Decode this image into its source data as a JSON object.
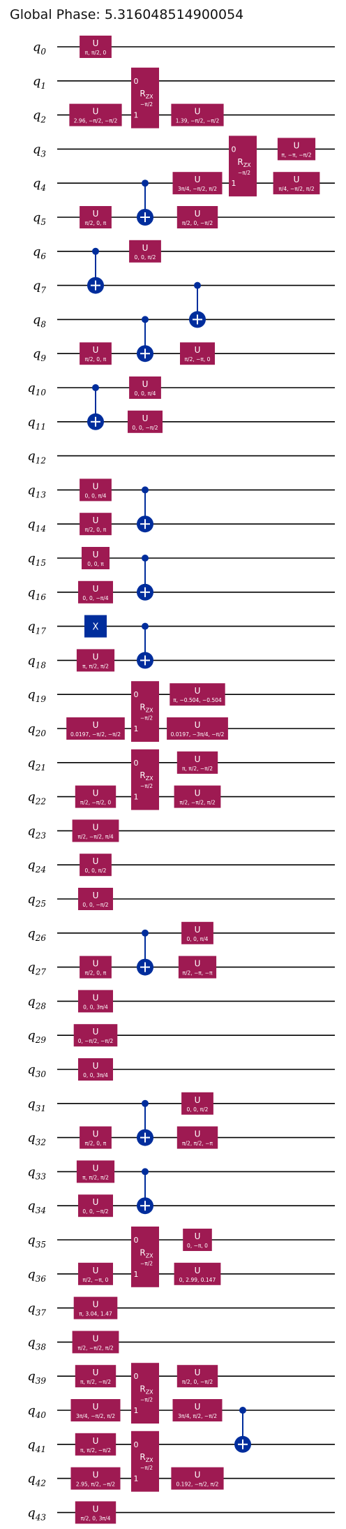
{
  "title": "Global Phase: 5.316048514900054",
  "qubit_prefix": "q",
  "qubits": [
    "0",
    "1",
    "2",
    "3",
    "4",
    "5",
    "6",
    "7",
    "8",
    "9",
    "10",
    "11",
    "12",
    "13",
    "14",
    "15",
    "16",
    "17",
    "18",
    "19",
    "20",
    "21",
    "22",
    "23",
    "24",
    "25",
    "26",
    "27",
    "28",
    "29",
    "30",
    "31",
    "32",
    "33",
    "34",
    "35",
    "36",
    "37",
    "38",
    "39",
    "40",
    "41",
    "42",
    "43"
  ],
  "colors": {
    "u_gate": "#9e1a52",
    "rzx_gate": "#9e1a52",
    "cx": "#002d9c",
    "x_gate": "#002d9c",
    "wire": "#000000",
    "text": "#ffffff"
  },
  "gates": [
    {
      "type": "U",
      "q": 0,
      "col": 1,
      "params": "π, π/2, 0"
    },
    {
      "type": "U",
      "q": 2,
      "col": 1,
      "params": "2.96, −π/2, −π/2"
    },
    {
      "type": "U",
      "q": 5,
      "col": 1,
      "params": "π/2, 0, π"
    },
    {
      "type": "U",
      "q": 9,
      "col": 1,
      "params": "π/2, 0, π"
    },
    {
      "type": "U",
      "q": 13,
      "col": 1,
      "params": "0, 0, π/4"
    },
    {
      "type": "U",
      "q": 14,
      "col": 1,
      "params": "π/2, 0, π"
    },
    {
      "type": "U",
      "q": 15,
      "col": 1,
      "params": "0, 0, π"
    },
    {
      "type": "U",
      "q": 16,
      "col": 1,
      "params": "0, 0, −π/4"
    },
    {
      "type": "X",
      "q": 17,
      "col": 1,
      "params": ""
    },
    {
      "type": "U",
      "q": 18,
      "col": 1,
      "params": "π, π/2, π/2"
    },
    {
      "type": "U",
      "q": 20,
      "col": 1,
      "params": "0.0197, −π/2, −π/2"
    },
    {
      "type": "U",
      "q": 22,
      "col": 1,
      "params": "π/2, −π/2, 0"
    },
    {
      "type": "U",
      "q": 23,
      "col": 1,
      "params": "π/2, −π/2, π/4"
    },
    {
      "type": "U",
      "q": 24,
      "col": 1,
      "params": "0, 0, π/2"
    },
    {
      "type": "U",
      "q": 25,
      "col": 1,
      "params": "0, 0, −π/2"
    },
    {
      "type": "U",
      "q": 27,
      "col": 1,
      "params": "π/2, 0, π"
    },
    {
      "type": "U",
      "q": 28,
      "col": 1,
      "params": "0, 0, 3π/4"
    },
    {
      "type": "U",
      "q": 29,
      "col": 1,
      "params": "0, −π/2, −π/2"
    },
    {
      "type": "U",
      "q": 30,
      "col": 1,
      "params": "0, 0, 3π/4"
    },
    {
      "type": "U",
      "q": 32,
      "col": 1,
      "params": "π/2, 0, π"
    },
    {
      "type": "U",
      "q": 33,
      "col": 1,
      "params": "π, π/2, π/2"
    },
    {
      "type": "U",
      "q": 34,
      "col": 1,
      "params": "0, 0, −π/2"
    },
    {
      "type": "U",
      "q": 36,
      "col": 1,
      "params": "π/2, −π, 0"
    },
    {
      "type": "U",
      "q": 37,
      "col": 1,
      "params": "π, 3.04, 1.47"
    },
    {
      "type": "U",
      "q": 38,
      "col": 1,
      "params": "π/2, −π/2, π/2"
    },
    {
      "type": "U",
      "q": 39,
      "col": 1,
      "params": "π, π/2, −π/2"
    },
    {
      "type": "U",
      "q": 40,
      "col": 1,
      "params": "3π/4, −π/2, π/2"
    },
    {
      "type": "U",
      "q": 41,
      "col": 1,
      "params": "π, π/2, −π/2"
    },
    {
      "type": "U",
      "q": 42,
      "col": 1,
      "params": "2.95, π/2, −π/2"
    },
    {
      "type": "U",
      "q": 43,
      "col": 1,
      "params": "π/2, 0, 3π/4"
    },
    {
      "type": "CX",
      "c": 6,
      "t": 7,
      "col": 1
    },
    {
      "type": "CX",
      "c": 10,
      "t": 11,
      "col": 1
    },
    {
      "type": "RZX",
      "q0": 1,
      "q1": 2,
      "col": 2,
      "params": "−π/2"
    },
    {
      "type": "RZX",
      "q0": 19,
      "q1": 20,
      "col": 2,
      "params": "−π/2"
    },
    {
      "type": "RZX",
      "q0": 21,
      "q1": 22,
      "col": 2,
      "params": "−π/2"
    },
    {
      "type": "RZX",
      "q0": 35,
      "q1": 36,
      "col": 2,
      "params": "−π/2"
    },
    {
      "type": "RZX",
      "q0": 39,
      "q1": 40,
      "col": 2,
      "params": "−π/2"
    },
    {
      "type": "RZX",
      "q0": 41,
      "q1": 42,
      "col": 2,
      "params": "−π/2"
    },
    {
      "type": "CX",
      "c": 4,
      "t": 5,
      "col": 2
    },
    {
      "type": "CX",
      "c": 8,
      "t": 9,
      "col": 2
    },
    {
      "type": "CX",
      "c": 13,
      "t": 14,
      "col": 2
    },
    {
      "type": "CX",
      "c": 15,
      "t": 16,
      "col": 2
    },
    {
      "type": "CX",
      "c": 17,
      "t": 18,
      "col": 2
    },
    {
      "type": "CX",
      "c": 26,
      "t": 27,
      "col": 2
    },
    {
      "type": "CX",
      "c": 31,
      "t": 32,
      "col": 2
    },
    {
      "type": "CX",
      "c": 33,
      "t": 34,
      "col": 2
    },
    {
      "type": "U",
      "q": 6,
      "col": 2,
      "params": "0, 0, π/2"
    },
    {
      "type": "U",
      "q": 10,
      "col": 2,
      "params": "0, 0, π/4"
    },
    {
      "type": "U",
      "q": 11,
      "col": 2,
      "params": "0, 0, −π/2"
    },
    {
      "type": "U",
      "q": 2,
      "col": 3,
      "params": "1.39, −π/2, −π/2"
    },
    {
      "type": "U",
      "q": 4,
      "col": 3,
      "params": "3π/4, −π/2, π/2"
    },
    {
      "type": "U",
      "q": 5,
      "col": 3,
      "params": "π/2, 0, −π/2"
    },
    {
      "type": "U",
      "q": 9,
      "col": 3,
      "params": "π/2, −π, 0"
    },
    {
      "type": "U",
      "q": 19,
      "col": 3,
      "params": "π, −0.504, −0.504"
    },
    {
      "type": "U",
      "q": 20,
      "col": 3,
      "params": "0.0197, −3π/4, −π/2"
    },
    {
      "type": "U",
      "q": 21,
      "col": 3,
      "params": "π, π/2, −π/2"
    },
    {
      "type": "U",
      "q": 22,
      "col": 3,
      "params": "π/2, −π/2, π/2"
    },
    {
      "type": "U",
      "q": 26,
      "col": 3,
      "params": "0, 0, π/4"
    },
    {
      "type": "U",
      "q": 27,
      "col": 3,
      "params": "π/2, −π, −π"
    },
    {
      "type": "U",
      "q": 31,
      "col": 3,
      "params": "0, 0, π/2"
    },
    {
      "type": "U",
      "q": 32,
      "col": 3,
      "params": "π/2, π/2, −π"
    },
    {
      "type": "U",
      "q": 35,
      "col": 3,
      "params": "0, −π, 0"
    },
    {
      "type": "U",
      "q": 36,
      "col": 3,
      "params": "0, 2.99, 0.147"
    },
    {
      "type": "U",
      "q": 39,
      "col": 3,
      "params": "π/2, 0, −π/2"
    },
    {
      "type": "U",
      "q": 40,
      "col": 3,
      "params": "3π/4, π/2, −π/2"
    },
    {
      "type": "U",
      "q": 42,
      "col": 3,
      "params": "0.192, −π/2, π/2"
    },
    {
      "type": "CX",
      "c": 7,
      "t": 8,
      "col": 3
    },
    {
      "type": "RZX",
      "q0": 3,
      "q1": 4,
      "col": 4,
      "params": "−π/2"
    },
    {
      "type": "CX",
      "c": 40,
      "t": 41,
      "col": 4
    },
    {
      "type": "U",
      "q": 3,
      "col": 5,
      "params": "π, −π, −π/2"
    },
    {
      "type": "U",
      "q": 4,
      "col": 5,
      "params": "π/4, −π/2, π/2"
    }
  ]
}
